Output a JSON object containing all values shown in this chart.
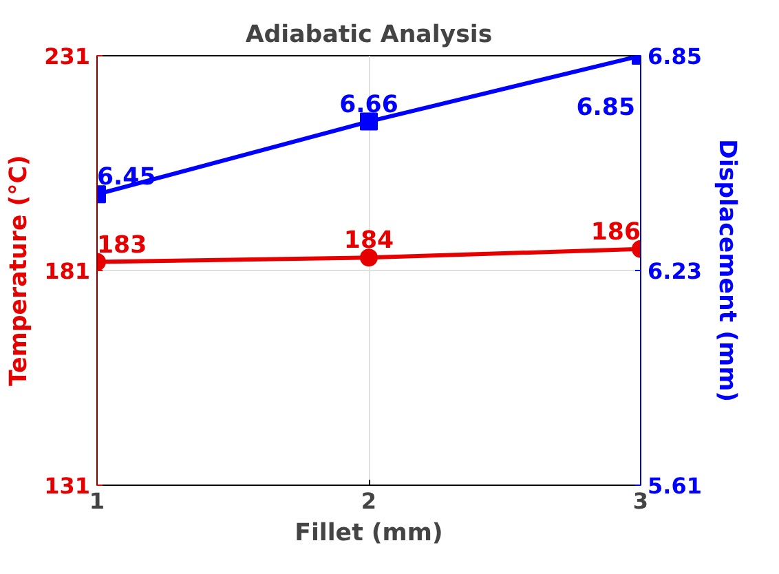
{
  "chart_data": {
    "type": "line",
    "title": "Adiabatic Analysis",
    "xlabel": "Fillet (mm)",
    "ylabel": "Temperature (°C)",
    "y2label": "Displacement (mm)",
    "x": [
      1,
      2,
      3
    ],
    "xlim": [
      1,
      3
    ],
    "xticks": [
      1,
      2,
      3
    ],
    "ylim": [
      131,
      231
    ],
    "yticks": [
      131,
      181,
      231
    ],
    "y2lim": [
      5.61,
      6.85
    ],
    "y2ticks": [
      5.61,
      6.23,
      6.85
    ],
    "grid": true,
    "data_labels": true,
    "line_style": "solid",
    "series": [
      {
        "name": null,
        "color": "#e60000",
        "values": [
          183,
          184,
          186
        ],
        "marker": "circle"
      },
      {
        "name": null,
        "color": "#0000ff",
        "values": [
          6.45,
          6.66,
          6.85
        ],
        "axis": "y2",
        "marker": "square"
      }
    ]
  }
}
